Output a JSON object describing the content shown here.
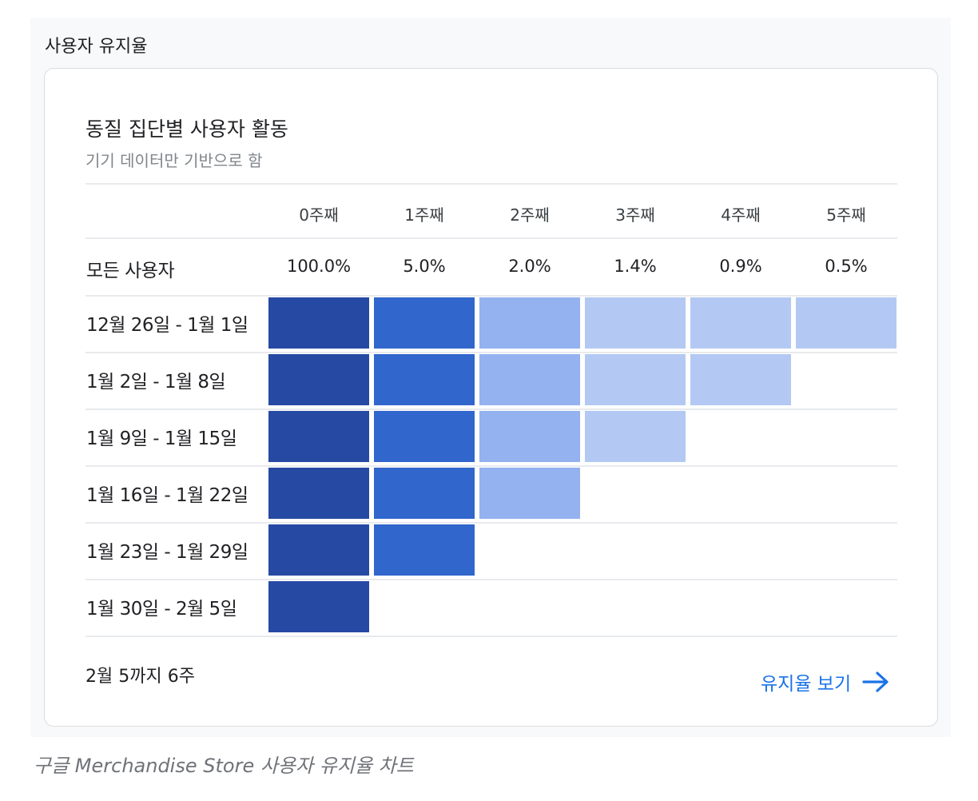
{
  "section": {
    "title": "사용자 유지율"
  },
  "card": {
    "title": "동질 집단별 사용자 활동",
    "subtitle": "기기 데이터만 기반으로 함"
  },
  "colors": {
    "week0": "#2649a3",
    "week1": "#3166cc",
    "week2": "#93b2ef",
    "week3plus": "#b3c9f4",
    "link": "#1a73e8"
  },
  "table": {
    "columns": [
      "0주째",
      "1주째",
      "2주째",
      "3주째",
      "4주째",
      "5주째"
    ],
    "all_users_label": "모든 사용자",
    "all_users_values": [
      "100.0%",
      "5.0%",
      "2.0%",
      "1.4%",
      "0.9%",
      "0.5%"
    ],
    "cohorts": [
      {
        "label": "12월 26일 - 1월 1일",
        "weeks_shown": 6
      },
      {
        "label": "1월 2일 - 1월 8일",
        "weeks_shown": 5
      },
      {
        "label": "1월 9일 - 1월 15일",
        "weeks_shown": 4
      },
      {
        "label": "1월 16일 - 1월 22일",
        "weeks_shown": 3
      },
      {
        "label": "1월 23일 - 1월 29일",
        "weeks_shown": 2
      },
      {
        "label": "1월 30일 - 2월 5일",
        "weeks_shown": 1
      }
    ]
  },
  "footer": {
    "range_text": "2월 5까지 6주",
    "link_label": "유지율 보기",
    "link_icon": "arrow-right-icon"
  },
  "caption": "구글 Merchandise Store 사용자 유지율 차트"
}
